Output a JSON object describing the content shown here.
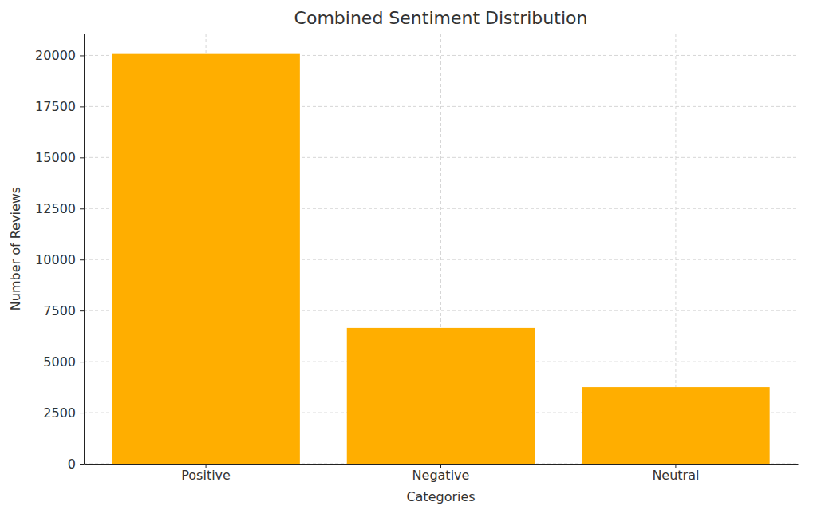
{
  "chart_data": {
    "type": "bar",
    "title": "Combined Sentiment Distribution",
    "x_label": "Categories",
    "y_label": "Number of Reviews",
    "categories": [
      "Positive",
      "Negative",
      "Neutral"
    ],
    "values": [
      20070,
      6650,
      3750
    ],
    "color": "#ffae00",
    "ylim": [
      0,
      21073
    ],
    "yticks": [
      0,
      2500,
      5000,
      7500,
      10000,
      12500,
      15000,
      17500,
      20000
    ],
    "grid": true
  }
}
